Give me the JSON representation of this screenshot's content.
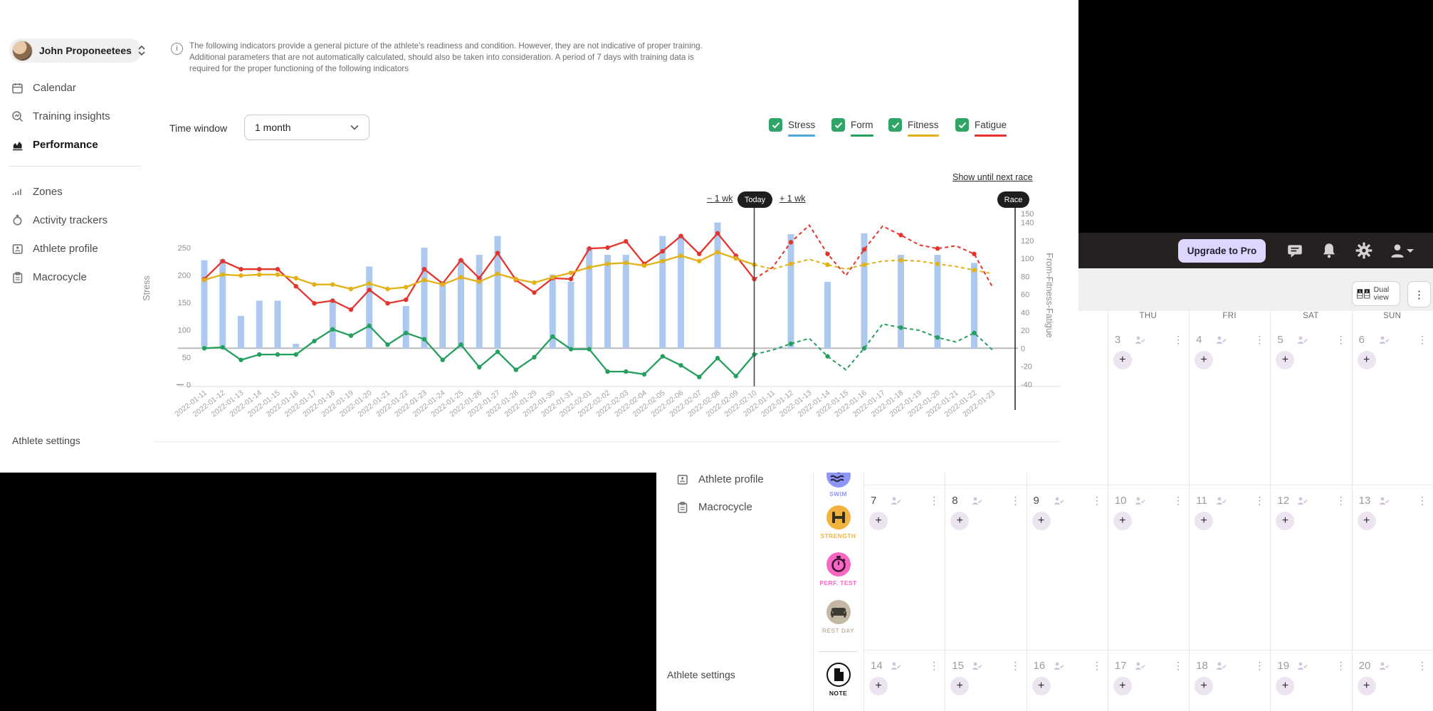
{
  "window_a": {
    "sidebar": {
      "user": {
        "name": "John Proponeetees"
      },
      "items": [
        {
          "label": "Calendar",
          "icon": "calendar",
          "active": false
        },
        {
          "label": "Training insights",
          "icon": "insights",
          "active": false
        },
        {
          "label": "Performance",
          "icon": "performance",
          "active": true
        },
        {
          "label": "Zones",
          "icon": "zones",
          "active": false
        },
        {
          "label": "Activity trackers",
          "icon": "tracker",
          "active": false
        },
        {
          "label": "Athlete profile",
          "icon": "profile",
          "active": false
        },
        {
          "label": "Macrocycle",
          "icon": "macrocycle",
          "active": false
        }
      ],
      "settings_label": "Athlete settings"
    },
    "info_note": "The following indicators provide a general picture of the athlete's readiness and condition. However, they are not indicative of proper training. Additional parameters that are not automatically calculated, should also be taken into consideration. A period of 7 days with training data is required for the proper functioning of the following indicators",
    "controls": {
      "time_window_label": "Time window",
      "time_window_value": "1 month",
      "show_until_next_race": "Show until next race",
      "minus_week": "− 1 wk",
      "today": "Today",
      "plus_week": "+ 1 wk",
      "race": "Race"
    },
    "legend": [
      {
        "label": "Stress",
        "color": "#4da7d9"
      },
      {
        "label": "Form",
        "color": "#259f5e"
      },
      {
        "label": "Fitness",
        "color": "#e2b116"
      },
      {
        "label": "Fatigue",
        "color": "#e5342b"
      }
    ]
  },
  "chart_data": {
    "type": "mixed_bar_line",
    "left_axis": {
      "label": "Stress",
      "ticks": [
        250,
        200,
        150,
        100,
        50,
        0
      ]
    },
    "right_axis": {
      "label": "From-Fitness-Fatigue",
      "ticks": [
        150,
        140,
        120,
        100,
        80,
        60,
        40,
        20,
        0,
        -20,
        -40
      ]
    },
    "x_past": [
      "2022-01-11",
      "2022-01-12",
      "2022-01-13",
      "2022-01-14",
      "2022-01-15",
      "2022-01-16",
      "2022-01-17",
      "2022-01-18",
      "2022-01-19",
      "2022-01-20",
      "2022-01-21",
      "2022-01-22",
      "2022-01-23",
      "2022-01-24",
      "2022-01-25",
      "2022-01-26",
      "2022-01-27",
      "2022-01-28",
      "2022-01-29",
      "2022-01-30",
      "2022-01-31",
      "2022-02-01",
      "2022-02-02",
      "2022-02-03",
      "2022-02-04",
      "2022-02-05",
      "2022-02-06",
      "2022-02-07",
      "2022-02-08",
      "2022-02-09",
      "2022-02-10"
    ],
    "x_future": [
      "2022-01-11",
      "2022-01-12",
      "2022-01-13",
      "2022-01-14",
      "2022-01-15",
      "2022-01-16",
      "2022-01-17",
      "2022-01-18",
      "2022-01-19",
      "2022-01-20",
      "2022-01-21",
      "2022-01-22",
      "2022-01-23"
    ],
    "series": [
      {
        "name": "Stress",
        "type": "bar",
        "color": "#adc9ef",
        "past": [
          98,
          99,
          36,
          53,
          53,
          5,
          null,
          53,
          null,
          91,
          null,
          47,
          112,
          74,
          99,
          104,
          125,
          null,
          null,
          82,
          74,
          112,
          104,
          104,
          null,
          125,
          125,
          null,
          140,
          null,
          null
        ],
        "future": [
          null,
          127,
          null,
          74,
          null,
          128,
          null,
          104,
          null,
          104,
          null,
          95,
          null
        ]
      },
      {
        "name": "Fatigue",
        "type": "line",
        "color": "#e5342b",
        "past": [
          77,
          97,
          88,
          88,
          88,
          69,
          50,
          53,
          43,
          65,
          50,
          54,
          88,
          72,
          98,
          78,
          106,
          76,
          62,
          78,
          77,
          111,
          112,
          119,
          94,
          108,
          125,
          105,
          128,
          103,
          77
        ],
        "future": [
          90,
          118,
          137,
          105,
          81,
          110,
          136,
          126,
          115,
          111,
          114,
          105,
          68
        ]
      },
      {
        "name": "Fitness",
        "type": "line",
        "color": "#e2b116",
        "past": [
          76,
          82,
          81,
          82,
          82,
          78,
          71,
          71,
          66,
          72,
          66,
          68,
          76,
          71,
          79,
          74,
          83,
          77,
          73,
          79,
          84,
          90,
          94,
          95,
          92,
          97,
          103,
          97,
          107,
          100,
          93
        ],
        "future": [
          88,
          94,
          99,
          93,
          88,
          93,
          97,
          98,
          97,
          94,
          91,
          87,
          83
        ]
      },
      {
        "name": "Form",
        "type": "line",
        "color": "#259f5e",
        "past": [
          0,
          1,
          -13,
          -7,
          -7,
          -7,
          8,
          21,
          14,
          25,
          4,
          17,
          10,
          -13,
          4,
          -21,
          -4,
          -24,
          -10,
          13,
          -1,
          -1,
          -26,
          -26,
          -29,
          -9,
          -19,
          -32,
          -11,
          -31,
          -7
        ],
        "future": [
          -2,
          5,
          11,
          -9,
          -24,
          0,
          27,
          23,
          20,
          12,
          7,
          17,
          -2
        ]
      }
    ],
    "zero_line": 0,
    "grid": false,
    "legend_position": "top-right"
  },
  "window_b": {
    "topbar": {
      "upgrade_label": "Upgrade to Pro",
      "icons": [
        "chat",
        "bell",
        "gear",
        "account"
      ]
    },
    "toolbar": {
      "dual_view_label": "Dual view",
      "kebab": "⋮"
    },
    "sidebar": {
      "items": [
        {
          "label": "Athlete profile",
          "icon": "profile"
        },
        {
          "label": "Macrocycle",
          "icon": "macrocycle"
        }
      ],
      "settings_label": "Athlete settings"
    },
    "rail": [
      {
        "label": "SWIM",
        "color": "#8e96f7",
        "icon": "swim"
      },
      {
        "label": "STRENGTH",
        "color": "#f2b33e",
        "icon": "strength"
      },
      {
        "label": "PERF. TEST",
        "color": "#f967c4",
        "icon": "perftest"
      },
      {
        "label": "REST DAY",
        "color": "#c5b7a5",
        "icon": "restday"
      },
      {
        "label": "NOTE",
        "color": "#1a1a1a",
        "icon": "note"
      }
    ],
    "calendar": {
      "day_headers": [
        "THU",
        "FRI",
        "SAT",
        "SUN"
      ],
      "rows": [
        {
          "start_col": 3,
          "dates": [
            "3",
            "4",
            "5",
            "6"
          ],
          "leading_partial_cell": true
        },
        {
          "start_col": 0,
          "dates": [
            "7",
            "8",
            "9",
            "10",
            "11",
            "12",
            "13"
          ],
          "dark_count": 3
        },
        {
          "start_col": 0,
          "dates": [
            "14",
            "15",
            "16",
            "17",
            "18",
            "19",
            "20"
          ],
          "dark_count": 0
        }
      ],
      "kebab_glyph": "⋮",
      "plus_glyph": "+"
    }
  }
}
